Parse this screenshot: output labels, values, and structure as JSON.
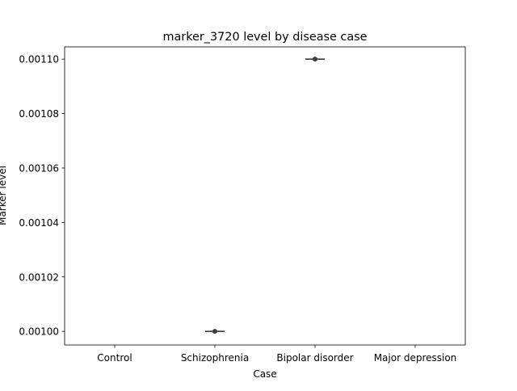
{
  "chart_data": {
    "type": "box",
    "title": "marker_3720 level by disease case",
    "xlabel": "Case",
    "ylabel": "Marker level",
    "categories": [
      "Control",
      "Schizophrenia",
      "Bipolar disorder",
      "Major depression"
    ],
    "series": [
      {
        "values": [
          null,
          0.001,
          0.0011,
          null
        ]
      }
    ],
    "ylim": [
      0.000995,
      0.0011045
    ],
    "yticks": [
      0.001,
      0.00102,
      0.00104,
      0.00106,
      0.00108,
      0.0011
    ],
    "ytick_labels": [
      "0.00100",
      "0.00102",
      "0.00104",
      "0.00106",
      "0.00108",
      "0.00110"
    ],
    "grid": false,
    "legend": "none",
    "colors": {
      "box_line": "#3d3d3d",
      "axes": "#000000",
      "background": "#ffffff"
    }
  }
}
